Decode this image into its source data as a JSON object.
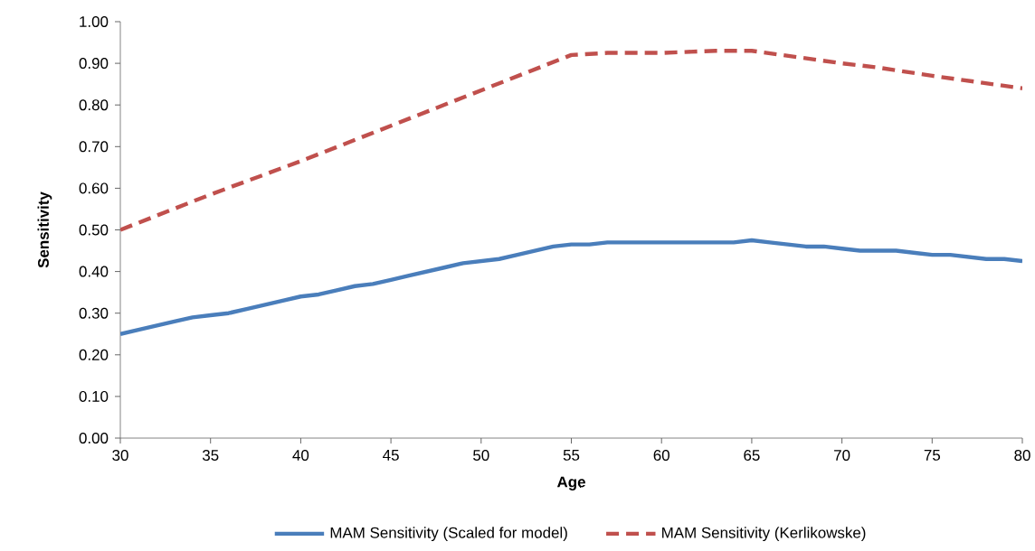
{
  "chart_data": {
    "type": "line",
    "xlabel": "Age",
    "ylabel": "Sensitivity",
    "xlim": [
      30,
      80
    ],
    "ylim": [
      0,
      1
    ],
    "xticks": [
      30,
      35,
      40,
      45,
      50,
      55,
      60,
      65,
      70,
      75,
      80
    ],
    "yticks": [
      {
        "value": 0,
        "label": "0.00"
      },
      {
        "value": 0.1,
        "label": "0.10"
      },
      {
        "value": 0.2,
        "label": "0.20"
      },
      {
        "value": 0.3,
        "label": "0.30"
      },
      {
        "value": 0.4,
        "label": "0.40"
      },
      {
        "value": 0.5,
        "label": "0.50"
      },
      {
        "value": 0.6,
        "label": "0.60"
      },
      {
        "value": 0.7,
        "label": "0.70"
      },
      {
        "value": 0.8,
        "label": "0.80"
      },
      {
        "value": 0.9,
        "label": "0.90"
      },
      {
        "value": 1,
        "label": "1.00"
      }
    ],
    "grid": false,
    "legend": "bottom",
    "marker": "none",
    "series": [
      {
        "name": "MAM Sensitivity (Scaled for model)",
        "color": "#4a7ebb",
        "line_style": "solid",
        "x": [
          30,
          31,
          32,
          33,
          34,
          35,
          36,
          37,
          38,
          39,
          40,
          41,
          42,
          43,
          44,
          45,
          46,
          47,
          48,
          49,
          50,
          51,
          52,
          53,
          54,
          55,
          56,
          57,
          60,
          64,
          65,
          66,
          67,
          68,
          69,
          70,
          71,
          72,
          73,
          74,
          75,
          76,
          77,
          78,
          79,
          80
        ],
        "values": [
          0.25,
          0.26,
          0.27,
          0.28,
          0.29,
          0.295,
          0.3,
          0.31,
          0.32,
          0.33,
          0.34,
          0.345,
          0.355,
          0.365,
          0.37,
          0.38,
          0.39,
          0.4,
          0.41,
          0.42,
          0.425,
          0.43,
          0.44,
          0.45,
          0.46,
          0.465,
          0.465,
          0.47,
          0.47,
          0.47,
          0.475,
          0.47,
          0.465,
          0.46,
          0.46,
          0.455,
          0.45,
          0.45,
          0.45,
          0.445,
          0.44,
          0.44,
          0.435,
          0.43,
          0.43,
          0.425
        ]
      },
      {
        "name": "MAM Sensitivity (Kerlikowske)",
        "color": "#c0504d",
        "line_style": "dashed",
        "x": [
          30,
          35,
          40,
          45,
          50,
          55,
          57,
          60,
          63,
          65,
          70,
          72,
          75,
          80
        ],
        "values": [
          0.5,
          0.585,
          0.665,
          0.75,
          0.835,
          0.92,
          0.925,
          0.925,
          0.93,
          0.93,
          0.9,
          0.89,
          0.87,
          0.84
        ]
      }
    ]
  }
}
